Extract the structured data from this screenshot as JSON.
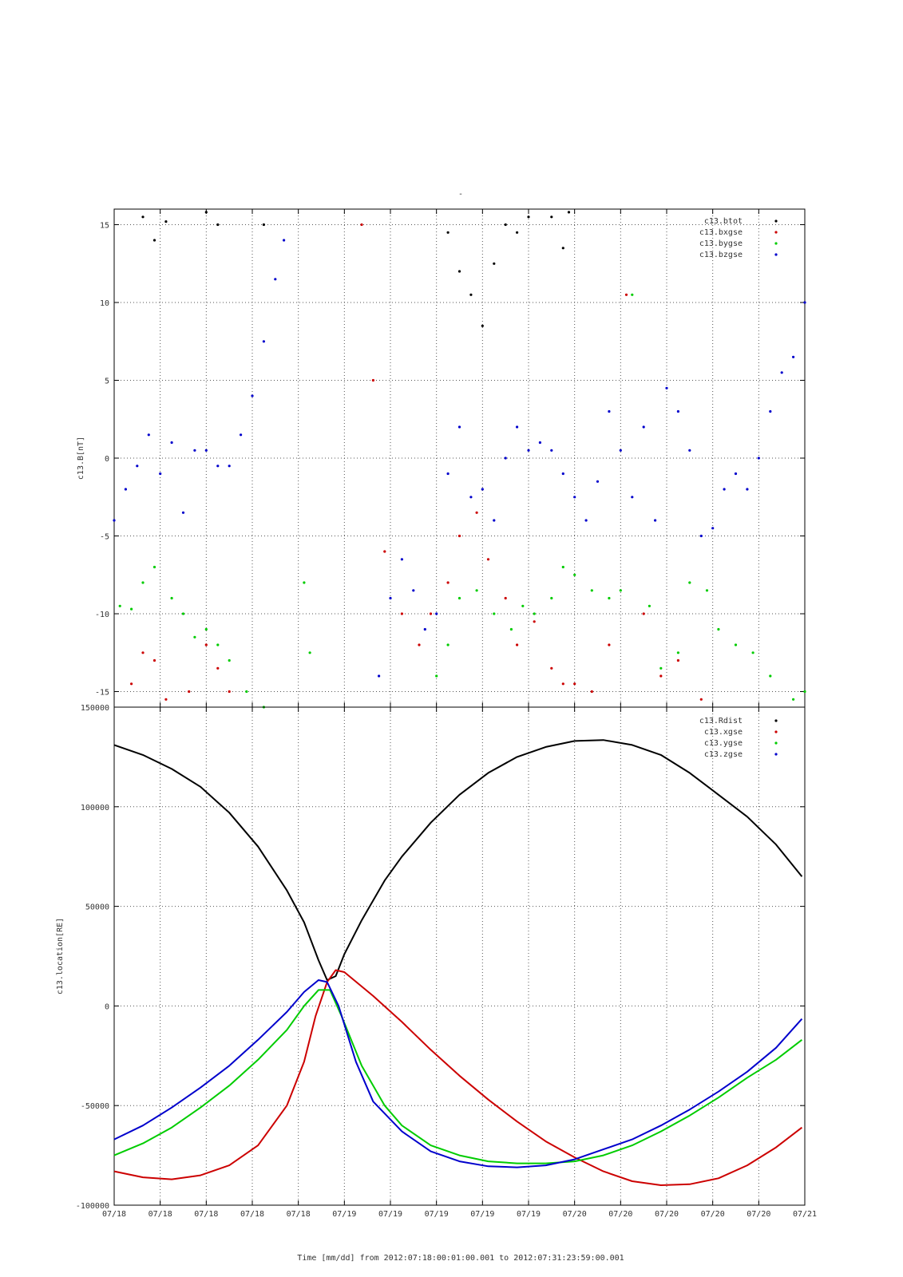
{
  "top_marker": "-",
  "xlabel": "Time [mm/dd]  from 2012:07:18:00:01:00.001  to  2012:07:31:23:59:00.001",
  "colors": {
    "black": "#000000",
    "red": "#cc0000",
    "green": "#00cc00",
    "blue": "#0000cc",
    "grid": "#555555"
  },
  "chart_data": [
    {
      "type": "scatter",
      "ylabel": "c13.B[nT]",
      "ylim": [
        -16,
        16
      ],
      "yticks": [
        15,
        10,
        5,
        0,
        -5,
        -10,
        -15
      ],
      "ytick_labels": [
        "15",
        "10",
        "5",
        "0",
        "-5",
        "-10",
        "-15"
      ],
      "xlim": [
        0,
        12
      ],
      "xtick_labels": [
        "07/18",
        "07/18",
        "07/18",
        "07/18",
        "07/18",
        "07/19",
        "07/19",
        "07/19",
        "07/19",
        "07/19",
        "07/20",
        "07/20",
        "07/20",
        "07/20",
        "07/20",
        "07/21"
      ],
      "grid": true,
      "legend_position": "top-right",
      "series": [
        {
          "name": "c13.btot",
          "color": "#000000",
          "x": [
            0.5,
            0.7,
            0.9,
            1.6,
            1.8,
            2.6,
            5.8,
            6.0,
            6.2,
            6.4,
            6.6,
            6.8,
            7.0,
            7.2,
            7.6,
            7.8,
            7.9
          ],
          "y": [
            15.5,
            14.0,
            15.2,
            15.8,
            15.0,
            15.0,
            14.5,
            12.0,
            10.5,
            8.5,
            12.5,
            15.0,
            14.5,
            15.5,
            15.5,
            13.5,
            15.8
          ]
        },
        {
          "name": "c13.bxgse",
          "color": "#cc0000",
          "x": [
            0.3,
            0.5,
            0.7,
            0.9,
            1.3,
            1.6,
            1.8,
            2.0,
            4.3,
            4.5,
            4.7,
            5.0,
            5.3,
            5.5,
            5.8,
            6.0,
            6.3,
            6.5,
            6.8,
            7.0,
            7.3,
            7.6,
            7.8,
            8.0,
            8.3,
            8.6,
            8.9,
            9.2,
            9.5,
            9.8,
            10.2
          ],
          "y": [
            -14.5,
            -12.5,
            -13.0,
            -15.5,
            -15.0,
            -12.0,
            -13.5,
            -15.0,
            15.0,
            5.0,
            -6.0,
            -10.0,
            -12.0,
            -10.0,
            -8.0,
            -5.0,
            -3.5,
            -6.5,
            -9.0,
            -12.0,
            -10.5,
            -13.5,
            -14.5,
            -14.5,
            -15.0,
            -12.0,
            10.5,
            -10.0,
            -14.0,
            -13.0,
            -15.5
          ]
        },
        {
          "name": "c13.bygse",
          "color": "#00cc00",
          "x": [
            0.1,
            0.3,
            0.5,
            0.7,
            1.0,
            1.2,
            1.4,
            1.6,
            1.8,
            2.0,
            2.3,
            2.6,
            3.3,
            3.4,
            5.6,
            5.8,
            6.0,
            6.3,
            6.6,
            6.9,
            7.1,
            7.3,
            7.6,
            7.8,
            8.0,
            8.3,
            8.6,
            8.8,
            9.0,
            9.3,
            9.5,
            9.8,
            10.0,
            10.3,
            10.5,
            10.8,
            11.1,
            11.4,
            11.8,
            12.0
          ],
          "y": [
            -9.5,
            -9.7,
            -8.0,
            -7.0,
            -9.0,
            -10.0,
            -11.5,
            -11.0,
            -12.0,
            -13.0,
            -15.0,
            -16.0,
            -8.0,
            -12.5,
            -14.0,
            -12.0,
            -9.0,
            -8.5,
            -10.0,
            -11.0,
            -9.5,
            -10.0,
            -9.0,
            -7.0,
            -7.5,
            -8.5,
            -9.0,
            -8.5,
            10.5,
            -9.5,
            -13.5,
            -12.5,
            -8.0,
            -8.5,
            -11.0,
            -12.0,
            -12.5,
            -14.0,
            -15.5,
            -15.0
          ]
        },
        {
          "name": "c13.bzgse",
          "color": "#0000cc",
          "x": [
            0.0,
            0.2,
            0.4,
            0.6,
            0.8,
            1.0,
            1.2,
            1.4,
            1.6,
            1.8,
            2.0,
            2.2,
            2.4,
            2.6,
            2.8,
            2.95,
            4.6,
            4.8,
            5.0,
            5.2,
            5.4,
            5.6,
            5.8,
            6.0,
            6.2,
            6.4,
            6.6,
            6.8,
            7.0,
            7.2,
            7.4,
            7.6,
            7.8,
            8.0,
            8.2,
            8.4,
            8.6,
            8.8,
            9.0,
            9.2,
            9.4,
            9.6,
            9.8,
            10.0,
            10.2,
            10.4,
            10.6,
            10.8,
            11.0,
            11.2,
            11.4,
            11.6,
            11.8,
            12.0
          ],
          "y": [
            -4.0,
            -2.0,
            -0.5,
            1.5,
            -1.0,
            1.0,
            -3.5,
            0.5,
            0.5,
            -0.5,
            -0.5,
            1.5,
            4.0,
            7.5,
            11.5,
            14.0,
            -14.0,
            -9.0,
            -6.5,
            -8.5,
            -11.0,
            -10.0,
            -1.0,
            2.0,
            -2.5,
            -2.0,
            -4.0,
            0.0,
            2.0,
            0.5,
            1.0,
            0.5,
            -1.0,
            -2.5,
            -4.0,
            -1.5,
            3.0,
            0.5,
            -2.5,
            2.0,
            -4.0,
            4.5,
            3.0,
            0.5,
            -5.0,
            -4.5,
            -2.0,
            -1.0,
            -2.0,
            0.0,
            3.0,
            5.5,
            6.5,
            10.0
          ]
        }
      ]
    },
    {
      "type": "line",
      "ylabel": "c13.location[RE]",
      "ylim": [
        -100000,
        150000
      ],
      "yticks": [
        150000,
        100000,
        50000,
        0,
        -50000,
        -100000
      ],
      "ytick_labels": [
        "150000",
        "100000",
        "50000",
        "0",
        "-50000",
        "-100000"
      ],
      "xlim": [
        0,
        12
      ],
      "xtick_labels": [
        "07/18",
        "07/18",
        "07/18",
        "07/18",
        "07/18",
        "07/19",
        "07/19",
        "07/19",
        "07/19",
        "07/19",
        "07/20",
        "07/20",
        "07/20",
        "07/20",
        "07/20",
        "07/21"
      ],
      "grid": true,
      "legend_position": "top-right",
      "series": [
        {
          "name": "c13.Rdist",
          "color": "#000000",
          "x": [
            0.0,
            0.5,
            1.0,
            1.5,
            2.0,
            2.5,
            3.0,
            3.3,
            3.55,
            3.7,
            3.85,
            4.0,
            4.3,
            4.7,
            5.0,
            5.5,
            6.0,
            6.5,
            7.0,
            7.5,
            8.0,
            8.5,
            9.0,
            9.5,
            10.0,
            10.5,
            11.0,
            11.5,
            11.95
          ],
          "y": [
            131000,
            126000,
            119000,
            110000,
            97000,
            80000,
            58000,
            42000,
            23000,
            13000,
            15000,
            26000,
            43000,
            63000,
            75000,
            92000,
            106000,
            117000,
            125000,
            130000,
            133000,
            133500,
            131000,
            126000,
            117000,
            106000,
            95000,
            81000,
            65000
          ]
        },
        {
          "name": "c13.xgse",
          "color": "#cc0000",
          "x": [
            0.0,
            0.5,
            1.0,
            1.5,
            2.0,
            2.5,
            3.0,
            3.3,
            3.5,
            3.7,
            3.85,
            4.0,
            4.5,
            5.0,
            5.5,
            6.0,
            6.5,
            7.0,
            7.5,
            8.0,
            8.5,
            9.0,
            9.5,
            10.0,
            10.5,
            11.0,
            11.5,
            11.95
          ],
          "y": [
            -83000,
            -86000,
            -87000,
            -85000,
            -80000,
            -70000,
            -50000,
            -28000,
            -5000,
            12000,
            18000,
            17000,
            5000,
            -8000,
            -22000,
            -35000,
            -47000,
            -58000,
            -68000,
            -76000,
            -83000,
            -88000,
            -90000,
            -89500,
            -86500,
            -80000,
            -71000,
            -61000
          ]
        },
        {
          "name": "c13.ygse",
          "color": "#00cc00",
          "x": [
            0.0,
            0.5,
            1.0,
            1.5,
            2.0,
            2.5,
            3.0,
            3.3,
            3.55,
            3.75,
            3.95,
            4.3,
            4.7,
            5.0,
            5.5,
            6.0,
            6.5,
            7.0,
            7.5,
            8.0,
            8.5,
            9.0,
            9.5,
            10.0,
            10.5,
            11.0,
            11.5,
            11.95
          ],
          "y": [
            -75000,
            -69000,
            -61000,
            -51000,
            -40000,
            -27000,
            -12000,
            0,
            8000,
            8000,
            -5000,
            -30000,
            -50000,
            -60000,
            -70000,
            -75000,
            -78000,
            -79000,
            -79000,
            -78000,
            -75000,
            -70000,
            -63000,
            -55000,
            -46000,
            -36000,
            -27000,
            -17000
          ]
        },
        {
          "name": "c13.zgse",
          "color": "#0000cc",
          "x": [
            0.0,
            0.5,
            1.0,
            1.5,
            2.0,
            2.5,
            3.0,
            3.3,
            3.55,
            3.7,
            3.9,
            4.2,
            4.5,
            5.0,
            5.5,
            6.0,
            6.5,
            7.0,
            7.5,
            8.0,
            8.5,
            9.0,
            9.5,
            10.0,
            10.5,
            11.0,
            11.5,
            11.95
          ],
          "y": [
            -67000,
            -60000,
            -51000,
            -41000,
            -30000,
            -17000,
            -3000,
            7000,
            13000,
            12000,
            0,
            -28000,
            -48000,
            -63000,
            -73000,
            -78000,
            -80500,
            -81000,
            -80000,
            -77000,
            -72000,
            -67000,
            -60000,
            -52000,
            -43000,
            -33000,
            -21000,
            -6500
          ]
        }
      ]
    }
  ]
}
